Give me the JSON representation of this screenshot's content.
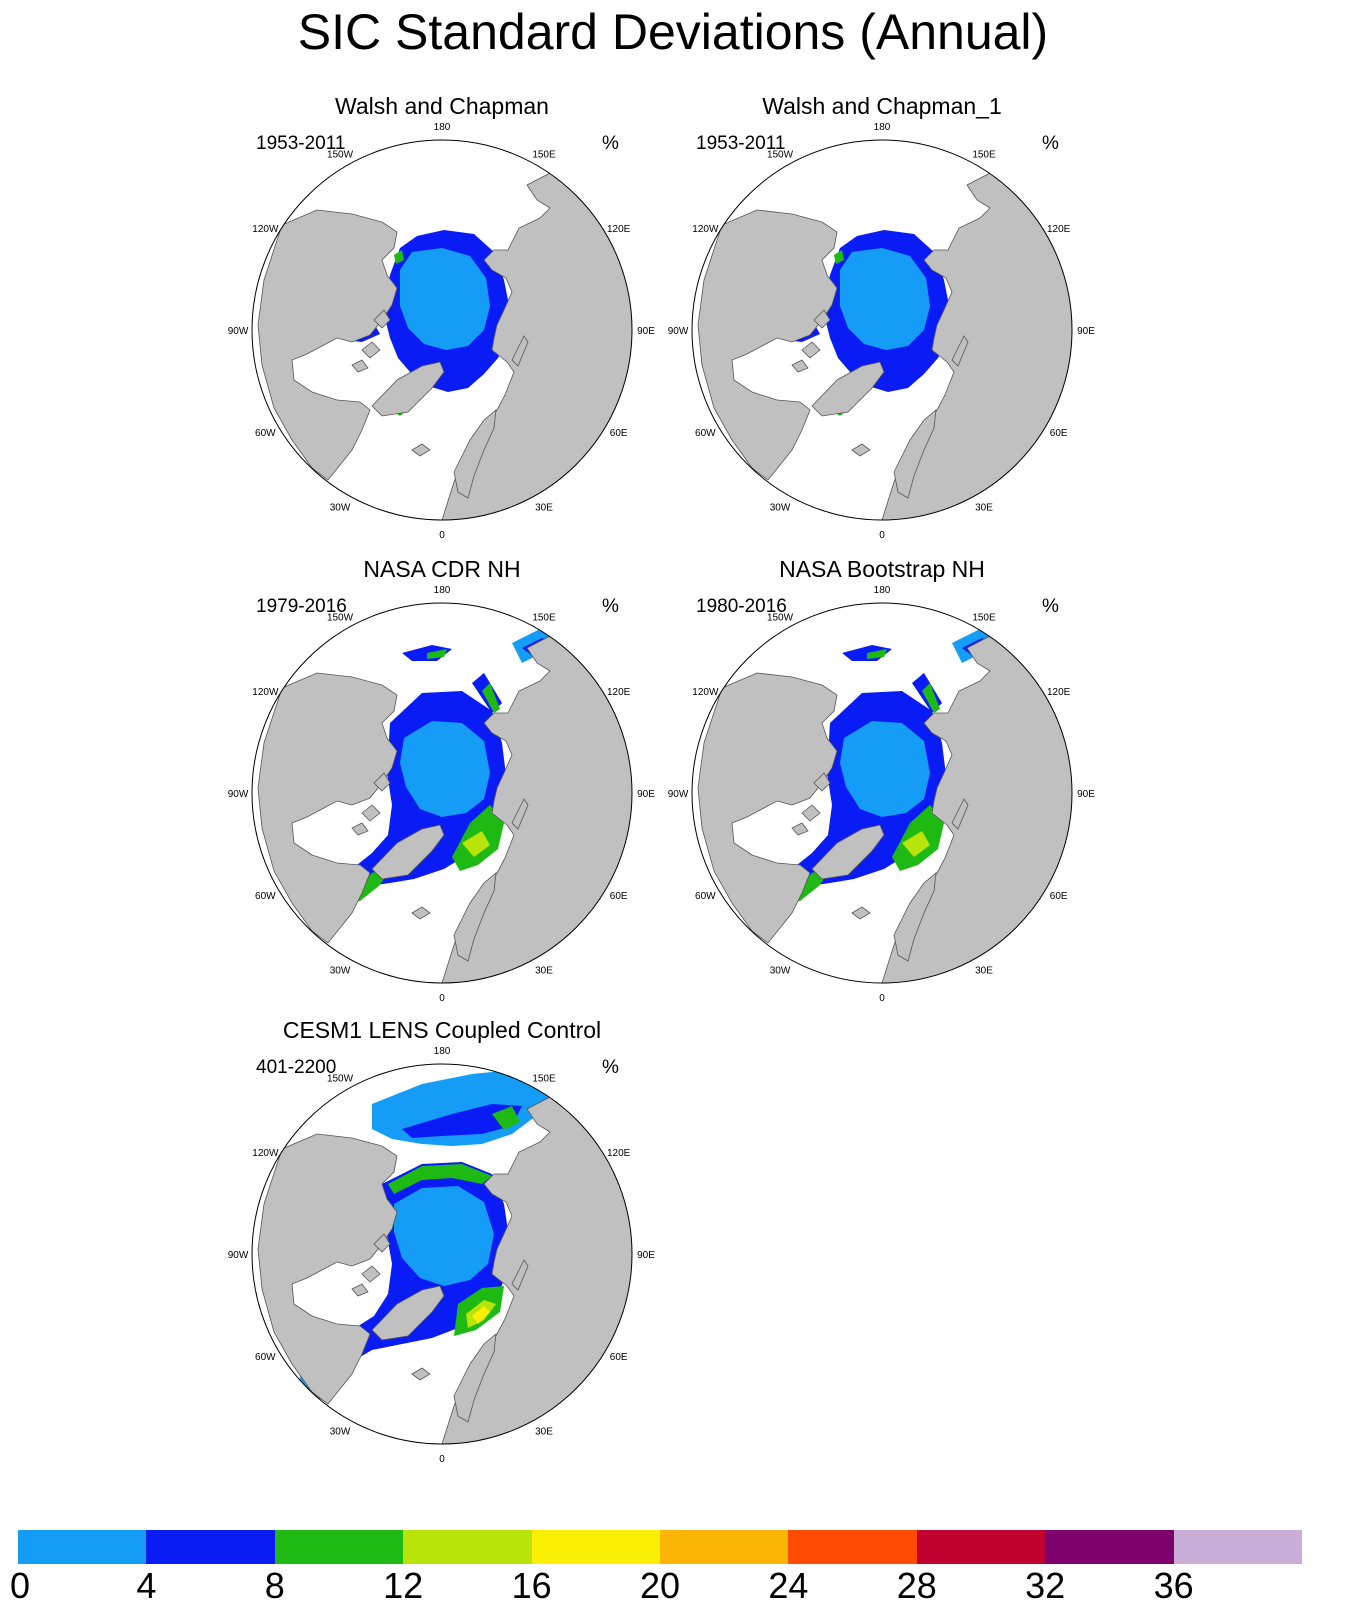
{
  "title": "SIC Standard Deviations (Annual)",
  "panels": [
    {
      "title": "Walsh and Chapman",
      "period": "1953-2011",
      "unit": "%",
      "pattern": "walsh"
    },
    {
      "title": "Walsh and Chapman_1",
      "period": "1953-2011",
      "unit": "%",
      "pattern": "walsh"
    },
    {
      "title": "NASA CDR NH",
      "period": "1979-2016",
      "unit": "%",
      "pattern": "nasa"
    },
    {
      "title": "NASA Bootstrap NH",
      "period": "1980-2016",
      "unit": "%",
      "pattern": "nasa"
    },
    {
      "title": "CESM1 LENS Coupled Control",
      "period": "401-2200",
      "unit": "%",
      "pattern": "cesm"
    }
  ],
  "longitude_labels": [
    "180",
    "150E",
    "120E",
    "90E",
    "60E",
    "30E",
    "0",
    "30W",
    "60W",
    "90W",
    "120W",
    "150W"
  ],
  "colorbar": {
    "colors": [
      "#149cf7",
      "#0a1cf5",
      "#1fb914",
      "#b9e40a",
      "#fbef05",
      "#fbb504",
      "#ff4b04",
      "#c20230",
      "#7d026b",
      "#c8aed8"
    ],
    "tick_labels": [
      "0",
      "4",
      "8",
      "12",
      "16",
      "20",
      "24",
      "28",
      "32",
      "36"
    ]
  },
  "colors": {
    "land": "#c0c0c0",
    "ocean": "#ffffff",
    "outline": "#555555"
  }
}
